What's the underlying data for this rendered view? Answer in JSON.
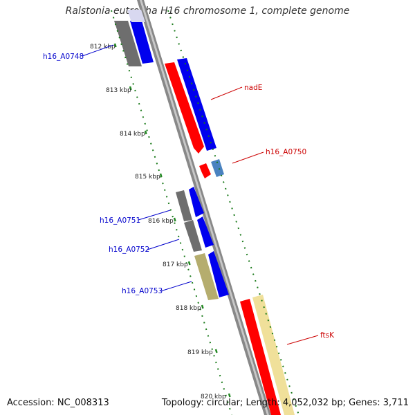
{
  "title": "Ralstonia eutropha H16 chromosome 1, complete genome",
  "footer": {
    "accession": "Accession: NC_008313",
    "stats": "Topology: circular; Length: 4,052,032 bp; Genes: 3,711"
  },
  "ruler_ticks": [
    {
      "label": "812 kbp"
    },
    {
      "label": "813 kbp"
    },
    {
      "label": "814 kbp"
    },
    {
      "label": "815 kbp"
    },
    {
      "label": "816 kbp"
    },
    {
      "label": "817 kbp"
    },
    {
      "label": "818 kbp"
    },
    {
      "label": "819 kbp"
    },
    {
      "label": "820 kbp"
    }
  ],
  "gene_labels": [
    {
      "name": "h16_A0748",
      "color": "#0000cc"
    },
    {
      "name": "nadE",
      "color": "#cc0000"
    },
    {
      "name": "h16_A0750",
      "color": "#cc0000"
    },
    {
      "name": "h16_A0751",
      "color": "#0000cc"
    },
    {
      "name": "h16_A0752",
      "color": "#0000cc"
    },
    {
      "name": "h16_A0753",
      "color": "#0000cc"
    },
    {
      "name": "ftsK",
      "color": "#cc0000"
    }
  ],
  "colors": {
    "cds": "#ff0000",
    "gene": "#0000ff",
    "pseudo_grey": "#777777",
    "misc_olive": "#b5ad6e",
    "pale_yellow": "#f2e6a0",
    "steel_blue": "#4a82c0",
    "backbone": "#999999",
    "ruler_tick": "#228822"
  }
}
